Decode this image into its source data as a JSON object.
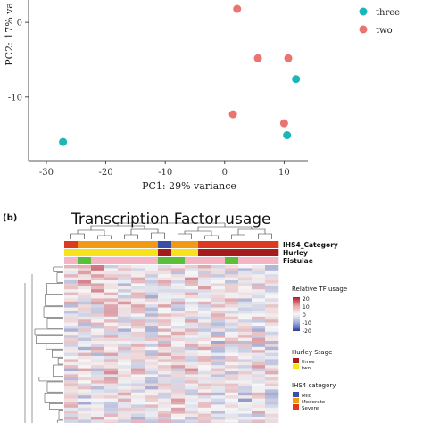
{
  "panel_b": {
    "label": "(b)",
    "title": "Transcription Factor usage",
    "annotation_rows": [
      "IHS4_Category",
      "Hurley",
      "Fistulae"
    ],
    "legend_tf": {
      "title": "Relative TF usage",
      "ticks": [
        "20",
        "10",
        "0",
        "-10",
        "-20"
      ]
    },
    "legend_hurley": {
      "title": "Hurley Stage",
      "items": [
        "three",
        "two"
      ]
    },
    "legend_ihs4": {
      "title": "IHS4 category",
      "items": [
        "Mild",
        "Moderate",
        "Severe"
      ]
    }
  },
  "colors": {
    "three": "#1bb6b6",
    "two": "#ea7470",
    "hurley_three": "#a61c1c",
    "hurley_two": "#f7e21b",
    "ihs4_mild": "#3a4fa8",
    "ihs4_moderate": "#f29a14",
    "ihs4_severe": "#df3a1e",
    "fistulae_a": "#5cbf3a",
    "fistulae_b": "#f4b6c6",
    "heat_high": "#b2182b",
    "heat_low": "#2c3b9a"
  },
  "chart_data": [
    {
      "type": "scatter",
      "xlabel": "PC1: 29% variance",
      "ylabel": "PC2: 17% va",
      "x_ticks": [
        -30,
        -20,
        -10,
        0,
        10
      ],
      "y_ticks": [
        0,
        -10
      ],
      "xlim": [
        -33,
        14
      ],
      "ylim": [
        -18.5,
        3
      ],
      "legend": {
        "placement": "right",
        "entries": [
          "three",
          "two"
        ]
      },
      "series": [
        {
          "name": "three",
          "points": [
            {
              "x": -27.2,
              "y": -16.0
            },
            {
              "x": 10.5,
              "y": -15.1
            },
            {
              "x": 12.0,
              "y": -7.6
            }
          ]
        },
        {
          "name": "two",
          "points": [
            {
              "x": 2.1,
              "y": 1.8
            },
            {
              "x": 5.6,
              "y": -4.8
            },
            {
              "x": 10.7,
              "y": -4.8
            },
            {
              "x": 1.4,
              "y": -12.3
            },
            {
              "x": 10.0,
              "y": -13.5
            }
          ]
        }
      ]
    },
    {
      "type": "heatmap",
      "title": "Transcription Factor usage",
      "columns": 16,
      "annotations": {
        "IHS4_Category": [
          "Severe",
          "Moderate",
          "Moderate",
          "Moderate",
          "Moderate",
          "Moderate",
          "Moderate",
          "Mild",
          "Moderate",
          "Moderate",
          "Severe",
          "Severe",
          "Severe",
          "Severe",
          "Severe",
          "Severe"
        ],
        "Hurley": [
          "two",
          "two",
          "two",
          "two",
          "two",
          "two",
          "two",
          "three",
          "two",
          "two",
          "three",
          "three",
          "three",
          "three",
          "three",
          "three"
        ],
        "Fistulae": [
          "b",
          "a",
          "b",
          "b",
          "b",
          "b",
          "b",
          "a",
          "a",
          "b",
          "b",
          "b",
          "a",
          "b",
          "b",
          "b"
        ]
      },
      "value_range": [
        -20,
        20
      ]
    }
  ]
}
